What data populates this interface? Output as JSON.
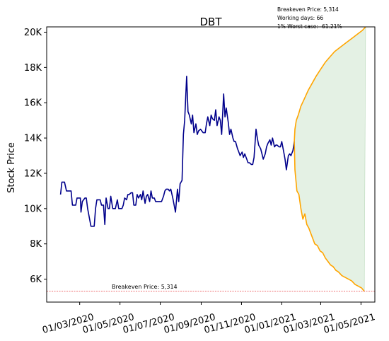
{
  "chart_data": {
    "type": "line",
    "title": "DBT",
    "ylabel": "Stock Price",
    "xlabel": "",
    "annotation_lines": [
      "Breakeven Price: 5,314",
      "Working days: 66",
      "1% Worst case: -61.21%"
    ],
    "breakeven": {
      "value": 5314,
      "label": "Breakeven Price: 5,314",
      "color": "#e41a1c"
    },
    "y_ticks": [
      {
        "value": 6000,
        "label": "6K"
      },
      {
        "value": 8000,
        "label": "8K"
      },
      {
        "value": 10000,
        "label": "10K"
      },
      {
        "value": 12000,
        "label": "12K"
      },
      {
        "value": 14000,
        "label": "14K"
      },
      {
        "value": 16000,
        "label": "16K"
      },
      {
        "value": 18000,
        "label": "18K"
      },
      {
        "value": 20000,
        "label": "20K"
      }
    ],
    "x_ticks": [
      {
        "date": "2020-03-01",
        "label": "01/03/2020"
      },
      {
        "date": "2020-05-01",
        "label": "01/05/2020"
      },
      {
        "date": "2020-07-01",
        "label": "01/07/2020"
      },
      {
        "date": "2020-09-01",
        "label": "01/09/2020"
      },
      {
        "date": "2020-11-01",
        "label": "01/11/2020"
      },
      {
        "date": "2021-01-01",
        "label": "01/01/2021"
      },
      {
        "date": "2021-03-01",
        "label": "01/03/2021"
      },
      {
        "date": "2021-05-01",
        "label": "01/05/2021"
      }
    ],
    "xlim": [
      "2020-01-11",
      "2021-05-22"
    ],
    "ylim": [
      4700,
      20300
    ],
    "series": [
      {
        "role": "history",
        "color": "#00008b",
        "points": [
          [
            "2020-02-01",
            10800
          ],
          [
            "2020-02-03",
            11500
          ],
          [
            "2020-02-07",
            11500
          ],
          [
            "2020-02-10",
            11000
          ],
          [
            "2020-02-14",
            11000
          ],
          [
            "2020-02-17",
            11000
          ],
          [
            "2020-02-19",
            10200
          ],
          [
            "2020-02-24",
            10200
          ],
          [
            "2020-02-26",
            10600
          ],
          [
            "2020-02-28",
            10600
          ],
          [
            "2020-03-02",
            10600
          ],
          [
            "2020-03-03",
            9800
          ],
          [
            "2020-03-05",
            10400
          ],
          [
            "2020-03-09",
            10600
          ],
          [
            "2020-03-11",
            10600
          ],
          [
            "2020-03-13",
            10000
          ],
          [
            "2020-03-16",
            9400
          ],
          [
            "2020-03-18",
            9000
          ],
          [
            "2020-03-23",
            9000
          ],
          [
            "2020-03-25",
            10000
          ],
          [
            "2020-03-27",
            10500
          ],
          [
            "2020-03-30",
            10500
          ],
          [
            "2020-04-01",
            10500
          ],
          [
            "2020-04-03",
            10200
          ],
          [
            "2020-04-06",
            10200
          ],
          [
            "2020-04-08",
            9100
          ],
          [
            "2020-04-10",
            10600
          ],
          [
            "2020-04-13",
            10000
          ],
          [
            "2020-04-15",
            10000
          ],
          [
            "2020-04-17",
            10700
          ],
          [
            "2020-04-20",
            10000
          ],
          [
            "2020-04-22",
            10000
          ],
          [
            "2020-04-24",
            10000
          ],
          [
            "2020-04-27",
            10500
          ],
          [
            "2020-04-29",
            10000
          ],
          [
            "2020-05-04",
            10000
          ],
          [
            "2020-05-06",
            10200
          ],
          [
            "2020-05-08",
            10600
          ],
          [
            "2020-05-11",
            10500
          ],
          [
            "2020-05-13",
            10800
          ],
          [
            "2020-05-15",
            10800
          ],
          [
            "2020-05-18",
            10900
          ],
          [
            "2020-05-20",
            10900
          ],
          [
            "2020-05-22",
            10200
          ],
          [
            "2020-05-25",
            10200
          ],
          [
            "2020-05-27",
            10800
          ],
          [
            "2020-05-29",
            10600
          ],
          [
            "2020-06-01",
            10800
          ],
          [
            "2020-06-03",
            10500
          ],
          [
            "2020-06-05",
            11000
          ],
          [
            "2020-06-08",
            10300
          ],
          [
            "2020-06-10",
            10700
          ],
          [
            "2020-06-12",
            10800
          ],
          [
            "2020-06-15",
            10400
          ],
          [
            "2020-06-17",
            11000
          ],
          [
            "2020-06-19",
            10600
          ],
          [
            "2020-06-22",
            10600
          ],
          [
            "2020-06-24",
            10400
          ],
          [
            "2020-06-26",
            10400
          ],
          [
            "2020-06-29",
            10400
          ],
          [
            "2020-07-01",
            10400
          ],
          [
            "2020-07-03",
            10400
          ],
          [
            "2020-07-06",
            10700
          ],
          [
            "2020-07-08",
            11000
          ],
          [
            "2020-07-10",
            11100
          ],
          [
            "2020-07-13",
            11100
          ],
          [
            "2020-07-15",
            11000
          ],
          [
            "2020-07-17",
            11100
          ],
          [
            "2020-07-20",
            10600
          ],
          [
            "2020-07-22",
            10200
          ],
          [
            "2020-07-24",
            9800
          ],
          [
            "2020-07-27",
            11100
          ],
          [
            "2020-07-29",
            10400
          ],
          [
            "2020-07-31",
            11400
          ],
          [
            "2020-08-03",
            11600
          ],
          [
            "2020-08-05",
            14200
          ],
          [
            "2020-08-07",
            15000
          ],
          [
            "2020-08-10",
            17500
          ],
          [
            "2020-08-12",
            15500
          ],
          [
            "2020-08-14",
            15300
          ],
          [
            "2020-08-17",
            14800
          ],
          [
            "2020-08-19",
            15300
          ],
          [
            "2020-08-21",
            14300
          ],
          [
            "2020-08-24",
            14800
          ],
          [
            "2020-08-26",
            14200
          ],
          [
            "2020-08-28",
            14400
          ],
          [
            "2020-08-31",
            14500
          ],
          [
            "2020-09-02",
            14400
          ],
          [
            "2020-09-04",
            14300
          ],
          [
            "2020-09-07",
            14300
          ],
          [
            "2020-09-09",
            14800
          ],
          [
            "2020-09-11",
            15200
          ],
          [
            "2020-09-14",
            14700
          ],
          [
            "2020-09-16",
            15300
          ],
          [
            "2020-09-18",
            15100
          ],
          [
            "2020-09-21",
            15000
          ],
          [
            "2020-09-23",
            15600
          ],
          [
            "2020-09-25",
            14700
          ],
          [
            "2020-09-28",
            15200
          ],
          [
            "2020-09-30",
            15000
          ],
          [
            "2020-10-02",
            14200
          ],
          [
            "2020-10-05",
            16500
          ],
          [
            "2020-10-07",
            15200
          ],
          [
            "2020-10-09",
            15700
          ],
          [
            "2020-10-12",
            14900
          ],
          [
            "2020-10-14",
            14200
          ],
          [
            "2020-10-16",
            14500
          ],
          [
            "2020-10-19",
            14000
          ],
          [
            "2020-10-21",
            13800
          ],
          [
            "2020-10-23",
            13800
          ],
          [
            "2020-10-26",
            13400
          ],
          [
            "2020-10-28",
            13200
          ],
          [
            "2020-10-30",
            13000
          ],
          [
            "2020-11-02",
            13200
          ],
          [
            "2020-11-04",
            12900
          ],
          [
            "2020-11-06",
            13100
          ],
          [
            "2020-11-09",
            12800
          ],
          [
            "2020-11-11",
            12600
          ],
          [
            "2020-11-13",
            12600
          ],
          [
            "2020-11-16",
            12500
          ],
          [
            "2020-11-18",
            12500
          ],
          [
            "2020-11-20",
            12900
          ],
          [
            "2020-11-23",
            14500
          ],
          [
            "2020-11-25",
            14000
          ],
          [
            "2020-11-27",
            13600
          ],
          [
            "2020-11-30",
            13400
          ],
          [
            "2020-12-02",
            13100
          ],
          [
            "2020-12-04",
            12800
          ],
          [
            "2020-12-07",
            13100
          ],
          [
            "2020-12-09",
            13500
          ],
          [
            "2020-12-11",
            13700
          ],
          [
            "2020-12-14",
            13900
          ],
          [
            "2020-12-16",
            13600
          ],
          [
            "2020-12-18",
            14000
          ],
          [
            "2020-12-21",
            13500
          ],
          [
            "2020-12-23",
            13600
          ],
          [
            "2020-12-25",
            13600
          ],
          [
            "2020-12-28",
            13500
          ],
          [
            "2020-12-30",
            13500
          ],
          [
            "2021-01-01",
            13800
          ],
          [
            "2021-01-04",
            13200
          ],
          [
            "2021-01-06",
            12800
          ],
          [
            "2021-01-08",
            12200
          ],
          [
            "2021-01-11",
            13000
          ],
          [
            "2021-01-13",
            13100
          ],
          [
            "2021-01-15",
            13000
          ],
          [
            "2021-01-18",
            13300
          ],
          [
            "2021-01-20",
            13800
          ]
        ]
      },
      {
        "role": "upper-bound",
        "color": "#ffa500",
        "points": [
          [
            "2021-01-20",
            13800
          ],
          [
            "2021-01-21",
            14500
          ],
          [
            "2021-01-23",
            15000
          ],
          [
            "2021-01-26",
            15300
          ],
          [
            "2021-01-30",
            15800
          ],
          [
            "2021-02-04",
            16200
          ],
          [
            "2021-02-10",
            16700
          ],
          [
            "2021-02-16",
            17100
          ],
          [
            "2021-02-22",
            17500
          ],
          [
            "2021-03-01",
            17900
          ],
          [
            "2021-03-08",
            18300
          ],
          [
            "2021-03-15",
            18600
          ],
          [
            "2021-03-22",
            18900
          ],
          [
            "2021-03-29",
            19100
          ],
          [
            "2021-04-05",
            19300
          ],
          [
            "2021-04-12",
            19500
          ],
          [
            "2021-04-19",
            19700
          ],
          [
            "2021-04-26",
            19900
          ],
          [
            "2021-05-03",
            20100
          ],
          [
            "2021-05-08",
            20300
          ]
        ]
      },
      {
        "role": "lower-bound",
        "color": "#ffa500",
        "points": [
          [
            "2021-01-20",
            13800
          ],
          [
            "2021-01-21",
            12200
          ],
          [
            "2021-01-24",
            11000
          ],
          [
            "2021-01-27",
            10800
          ],
          [
            "2021-01-30",
            10000
          ],
          [
            "2021-02-02",
            9400
          ],
          [
            "2021-02-05",
            9700
          ],
          [
            "2021-02-08",
            9100
          ],
          [
            "2021-02-11",
            8900
          ],
          [
            "2021-02-14",
            8600
          ],
          [
            "2021-02-17",
            8300
          ],
          [
            "2021-02-20",
            8000
          ],
          [
            "2021-02-24",
            7900
          ],
          [
            "2021-02-28",
            7600
          ],
          [
            "2021-03-04",
            7500
          ],
          [
            "2021-03-08",
            7200
          ],
          [
            "2021-03-12",
            7000
          ],
          [
            "2021-03-16",
            6800
          ],
          [
            "2021-03-20",
            6700
          ],
          [
            "2021-03-24",
            6500
          ],
          [
            "2021-03-28",
            6400
          ],
          [
            "2021-04-02",
            6200
          ],
          [
            "2021-04-07",
            6100
          ],
          [
            "2021-04-12",
            6000
          ],
          [
            "2021-04-17",
            5900
          ],
          [
            "2021-04-22",
            5700
          ],
          [
            "2021-04-27",
            5600
          ],
          [
            "2021-05-02",
            5500
          ],
          [
            "2021-05-06",
            5314
          ]
        ]
      }
    ],
    "band_fill": "#d6ead6"
  }
}
